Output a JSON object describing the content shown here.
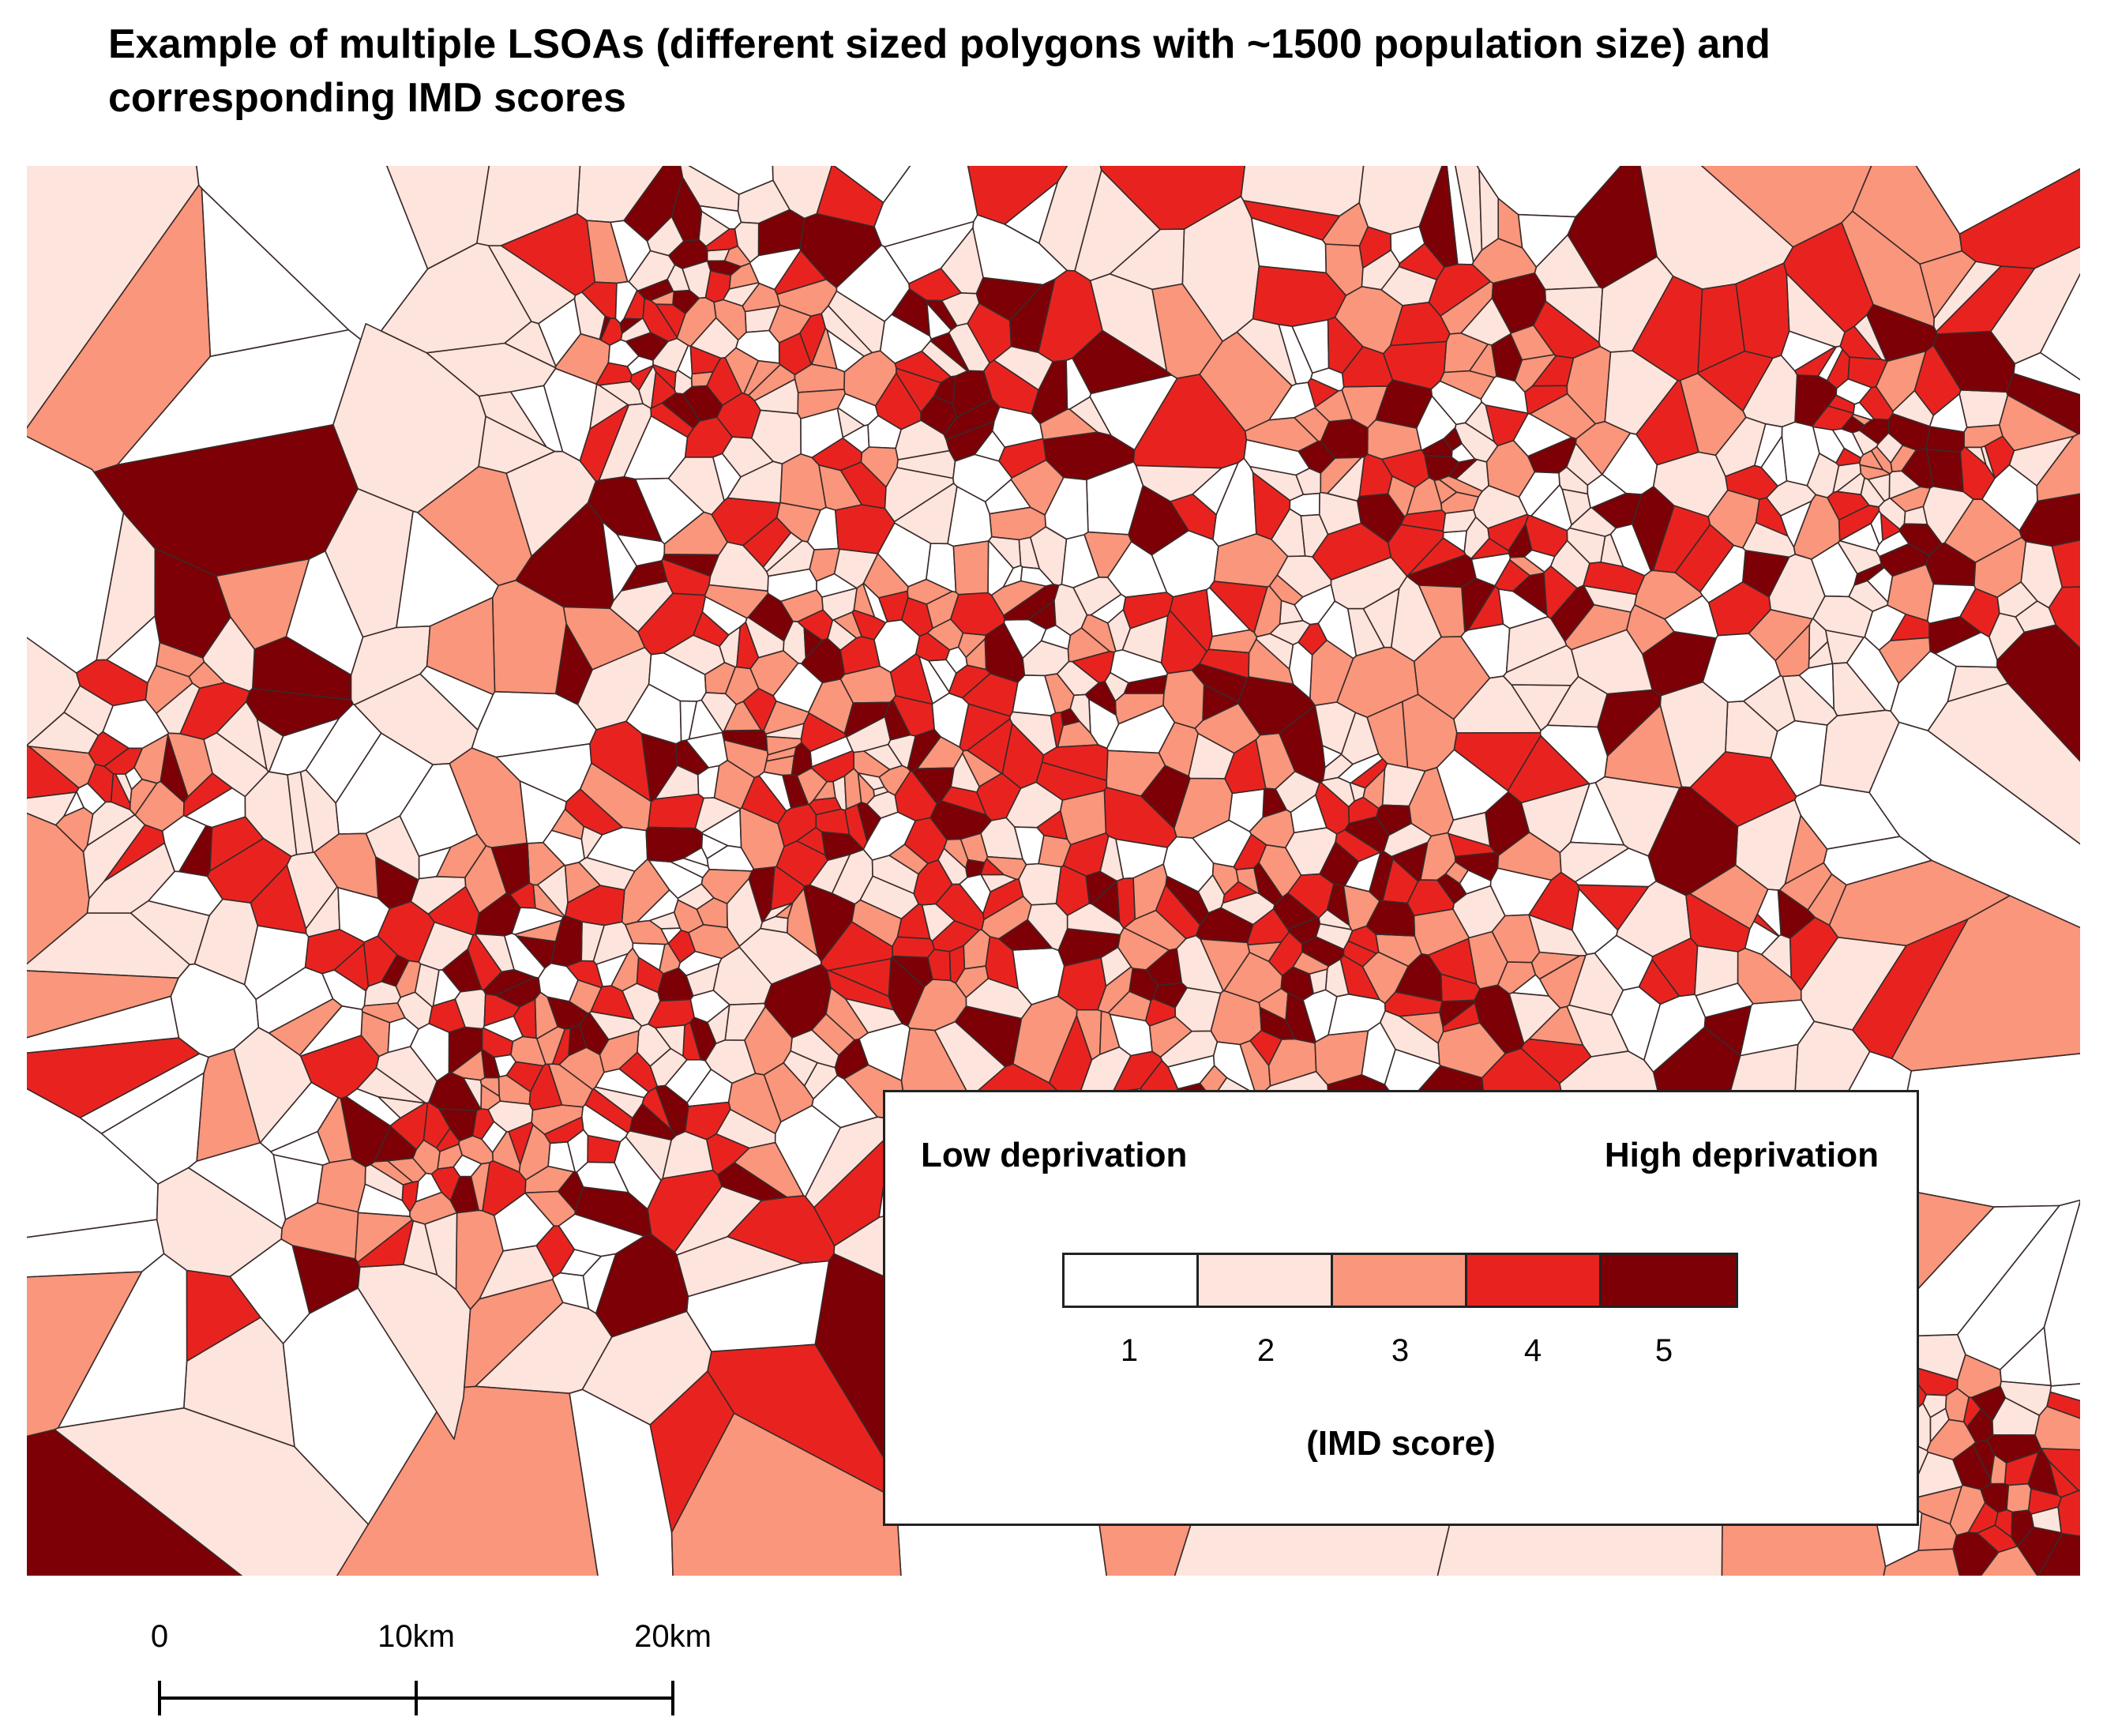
{
  "title": {
    "line1": "Example of multiple LSOAs (different sized polygons with ~1500 population size) and",
    "line2": "corresponding IMD scores"
  },
  "legend": {
    "low_label": "Low deprivation",
    "high_label": "High deprivation",
    "axis_label": "(IMD score)",
    "classes": [
      {
        "score": "1",
        "color": "#ffffff"
      },
      {
        "score": "2",
        "color": "#fde4dc"
      },
      {
        "score": "3",
        "color": "#f9967b"
      },
      {
        "score": "4",
        "color": "#e8231f"
      },
      {
        "score": "5",
        "color": "#7c0006"
      }
    ]
  },
  "scalebar": {
    "labels": [
      "0",
      "10km",
      "20km"
    ]
  }
}
